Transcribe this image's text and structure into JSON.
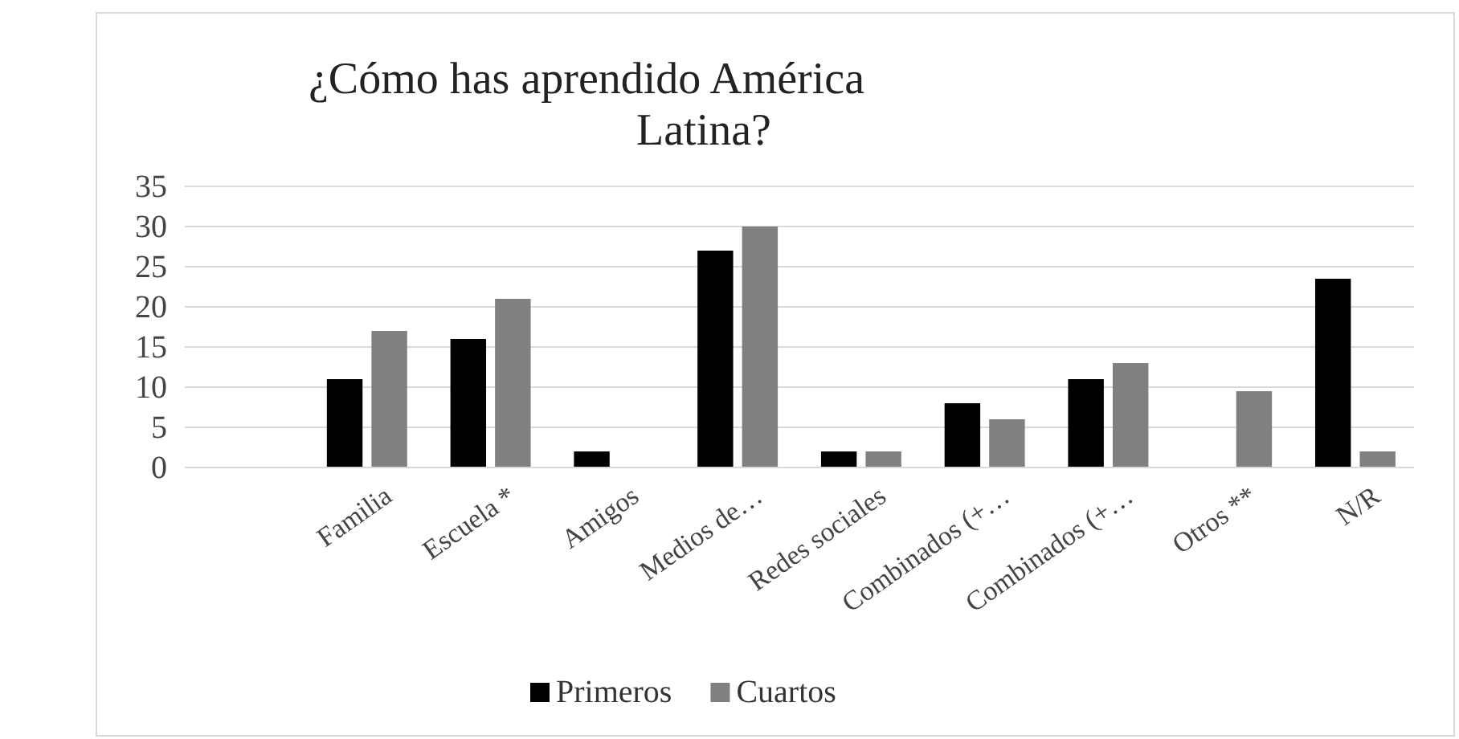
{
  "chart_data": {
    "type": "bar",
    "title": "¿Cómo has aprendido América Latina?",
    "categories": [
      null,
      "Familia",
      "Escuela *",
      "Amigos",
      "Medios de…",
      "Redes sociales",
      "Combinados (+…",
      "Combinados (+…",
      "Otros **",
      "N/R"
    ],
    "series": [
      {
        "name": "Primeros",
        "color": "#000000",
        "values": [
          null,
          11,
          16,
          2,
          27,
          2,
          8,
          11,
          null,
          23.5
        ]
      },
      {
        "name": "Cuartos",
        "color": "#808080",
        "values": [
          null,
          17,
          21,
          null,
          30,
          2,
          6,
          13,
          9.5,
          2
        ]
      }
    ],
    "ylim": [
      0,
      35
    ],
    "yticks": [
      0,
      5,
      10,
      15,
      20,
      25,
      30,
      35
    ],
    "grid": "y",
    "legend": "bottom"
  }
}
